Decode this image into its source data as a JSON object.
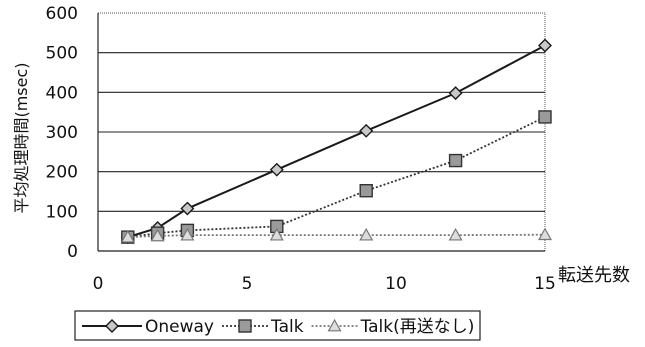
{
  "chart_data": {
    "type": "line",
    "xlabel": "転送先数",
    "ylabel": "平均処理時間(msec)",
    "xlim": [
      0,
      15
    ],
    "ylim": [
      0,
      600
    ],
    "x_ticks": [
      0,
      5,
      10,
      15
    ],
    "y_ticks": [
      0,
      100,
      200,
      300,
      400,
      500,
      600
    ],
    "grid": "horizontal",
    "legend_position": "bottom",
    "series": [
      {
        "name": "Oneway",
        "style": "solid",
        "marker": "diamond",
        "color": "#1a1a1a",
        "x": [
          1,
          2,
          3,
          6,
          9,
          12,
          15
        ],
        "y": [
          35,
          58,
          107,
          205,
          303,
          398,
          518
        ]
      },
      {
        "name": "Talk",
        "style": "dotted",
        "marker": "square",
        "color": "#333333",
        "x": [
          1,
          2,
          3,
          6,
          9,
          12,
          15
        ],
        "y": [
          35,
          45,
          52,
          62,
          152,
          228,
          338
        ]
      },
      {
        "name": "Talk(再送なし)",
        "style": "dotted",
        "marker": "triangle",
        "color": "#777777",
        "x": [
          1,
          2,
          3,
          6,
          9,
          12,
          15
        ],
        "y": [
          35,
          38,
          40,
          40,
          40,
          40,
          41
        ]
      }
    ]
  }
}
